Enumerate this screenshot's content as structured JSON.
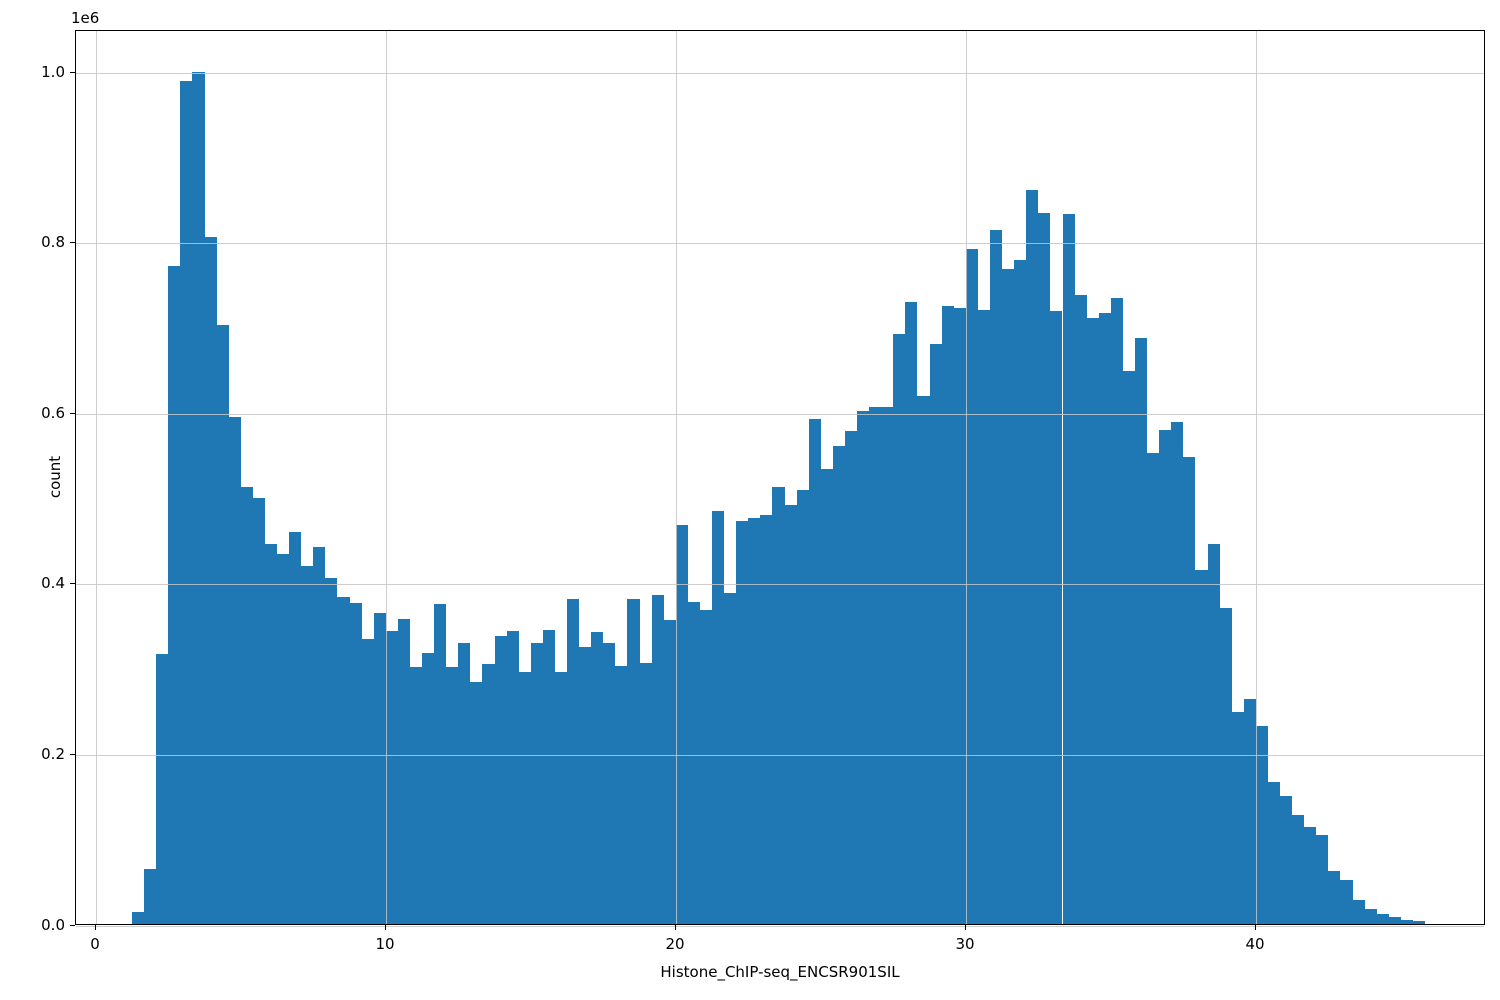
{
  "chart_data": {
    "type": "bar",
    "subtype": "histogram",
    "title": "",
    "xlabel": "Histone_ChIP-seq_ENCSR901SIL",
    "ylabel": "count",
    "y_offset_label": "1e6",
    "bar_color": "#1f77b4",
    "grid": true,
    "legend": "none",
    "xlim": [
      -0.69,
      47.93
    ],
    "ylim": [
      0,
      1.0493
    ],
    "x_ticks": [
      0,
      10,
      20,
      30,
      40
    ],
    "x_tick_labels": [
      "0",
      "10",
      "20",
      "30",
      "40"
    ],
    "y_ticks": [
      0.0,
      0.2,
      0.4,
      0.6,
      0.8,
      1.0
    ],
    "y_tick_labels": [
      "0.0",
      "0.2",
      "0.4",
      "0.6",
      "0.8",
      "1.0"
    ],
    "y_unit_multiplier": 1000000,
    "bin_start_x": 1.241,
    "bin_width_x": 0.4167,
    "bin_count": 107,
    "counts_in_1e6": [
      0.014,
      0.064,
      0.316,
      0.771,
      0.988,
      0.999,
      0.806,
      0.702,
      0.595,
      0.512,
      0.5,
      0.446,
      0.434,
      0.46,
      0.42,
      0.442,
      0.406,
      0.383,
      0.376,
      0.334,
      0.365,
      0.344,
      0.358,
      0.301,
      0.318,
      0.375,
      0.301,
      0.329,
      0.284,
      0.305,
      0.338,
      0.344,
      0.296,
      0.329,
      0.345,
      0.296,
      0.381,
      0.325,
      0.342,
      0.33,
      0.302,
      0.381,
      0.306,
      0.386,
      0.356,
      0.468,
      0.378,
      0.368,
      0.484,
      0.388,
      0.473,
      0.476,
      0.479,
      0.512,
      0.491,
      0.509,
      0.592,
      0.534,
      0.56,
      0.578,
      0.601,
      0.606,
      0.606,
      0.692,
      0.729,
      0.619,
      0.68,
      0.724,
      0.722,
      0.791,
      0.72,
      0.814,
      0.768,
      0.778,
      0.861,
      0.834,
      0.719,
      0.832,
      0.737,
      0.71,
      0.716,
      0.734,
      0.648,
      0.687,
      0.552,
      0.579,
      0.588,
      0.547,
      0.415,
      0.445,
      0.37,
      0.248,
      0.264,
      0.232,
      0.166,
      0.15,
      0.128,
      0.114,
      0.104,
      0.062,
      0.052,
      0.028,
      0.018,
      0.012,
      0.008,
      0.005,
      0.003
    ]
  }
}
